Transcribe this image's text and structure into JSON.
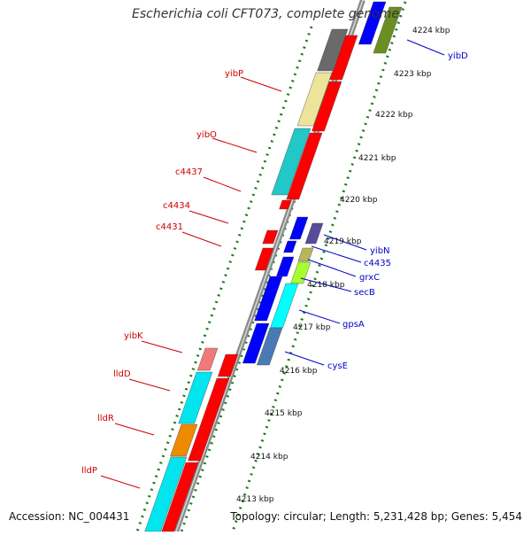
{
  "title": "Escherichia coli CFT073, complete genome",
  "footer": {
    "accession": "Accession: NC_004431",
    "summary": "Topology: circular; Length: 5,231,428 bp; Genes: 5,454"
  },
  "colors": {
    "left_label": "#cc0000",
    "right_label": "#0000cc",
    "backbone": "#8a8a8a",
    "dots": "#1a7a1a",
    "reverse_strand": "#ff0000",
    "forward_strand": "#0000ff"
  },
  "scale_labels": [
    {
      "text": "4224 kbp"
    },
    {
      "text": "4223 kbp"
    },
    {
      "text": "4222 kbp"
    },
    {
      "text": "4221 kbp"
    },
    {
      "text": "4220 kbp"
    },
    {
      "text": "4219 kbp"
    },
    {
      "text": "4218 kbp"
    },
    {
      "text": "4217 kbp"
    },
    {
      "text": "4216 kbp"
    },
    {
      "text": "4215 kbp"
    },
    {
      "text": "4214 kbp"
    },
    {
      "text": "4213 kbp"
    }
  ],
  "left_labels": [
    {
      "text": "yibP"
    },
    {
      "text": "yibO"
    },
    {
      "text": "c4437"
    },
    {
      "text": "c4434"
    },
    {
      "text": "c4431"
    },
    {
      "text": "yibK"
    },
    {
      "text": "lldD"
    },
    {
      "text": "lldR"
    },
    {
      "text": "lldP"
    }
  ],
  "right_labels": [
    {
      "text": "yibD"
    },
    {
      "text": "yibN"
    },
    {
      "text": "c4435"
    },
    {
      "text": "grxC"
    },
    {
      "text": "secB"
    },
    {
      "text": "gpsA"
    },
    {
      "text": "cysE"
    }
  ]
}
